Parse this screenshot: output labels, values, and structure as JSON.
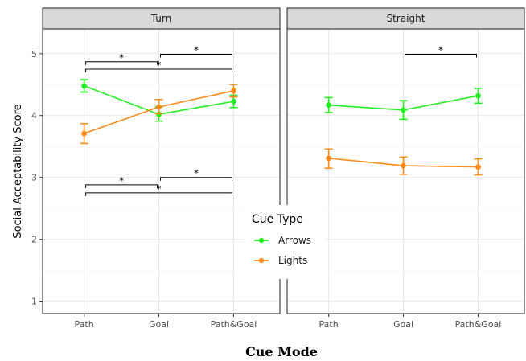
{
  "chart_data": {
    "type": "line",
    "xlabel": "Cue Mode",
    "ylabel": "Social Acceptability Score",
    "ylim": [
      0.8,
      5.4
    ],
    "yticks": [
      1,
      2,
      3,
      4,
      5
    ],
    "categories": [
      "Path",
      "Goal",
      "Path&Goal"
    ],
    "legend": {
      "title": "Cue Type",
      "placement": "center",
      "entries": [
        "Arrows",
        "Lights"
      ]
    },
    "grid": true,
    "colors": {
      "Arrows": "#22ee22",
      "Lights": "#ff8c1a"
    },
    "panels": [
      {
        "label": "Turn",
        "series": [
          {
            "name": "Arrows",
            "values": [
              4.48,
              4.02,
              4.23
            ],
            "ci_low": [
              4.38,
              3.91,
              4.13
            ],
            "ci_high": [
              4.58,
              4.14,
              4.33
            ]
          },
          {
            "name": "Lights",
            "values": [
              3.71,
              4.14,
              4.4
            ],
            "ci_low": [
              3.55,
              4.03,
              4.3
            ],
            "ci_high": [
              3.87,
              4.26,
              4.5
            ]
          }
        ],
        "significance": [
          {
            "series": "Arrows",
            "from": "Path",
            "to": "Goal",
            "y": 4.87,
            "label": "*"
          },
          {
            "series": "Arrows",
            "from": "Goal",
            "to": "Path&Goal",
            "y": 4.99,
            "label": "*"
          },
          {
            "series": "Arrows",
            "from": "Path",
            "to": "Path&Goal",
            "y": 4.75,
            "label": "*"
          },
          {
            "series": "Lights",
            "from": "Path",
            "to": "Goal",
            "y": 2.88,
            "label": "*"
          },
          {
            "series": "Lights",
            "from": "Goal",
            "to": "Path&Goal",
            "y": 3.0,
            "label": "*"
          },
          {
            "series": "Lights",
            "from": "Path",
            "to": "Path&Goal",
            "y": 2.75,
            "label": "*"
          }
        ]
      },
      {
        "label": "Straight",
        "series": [
          {
            "name": "Arrows",
            "values": [
              4.17,
              4.09,
              4.32
            ],
            "ci_low": [
              4.05,
              3.94,
              4.2
            ],
            "ci_high": [
              4.29,
              4.24,
              4.44
            ]
          },
          {
            "name": "Lights",
            "values": [
              3.31,
              3.19,
              3.17
            ],
            "ci_low": [
              3.15,
              3.05,
              3.04
            ],
            "ci_high": [
              3.46,
              3.33,
              3.3
            ]
          }
        ],
        "significance": [
          {
            "series": "Arrows",
            "from": "Goal",
            "to": "Path&Goal",
            "y": 4.99,
            "label": "*"
          }
        ]
      }
    ]
  }
}
